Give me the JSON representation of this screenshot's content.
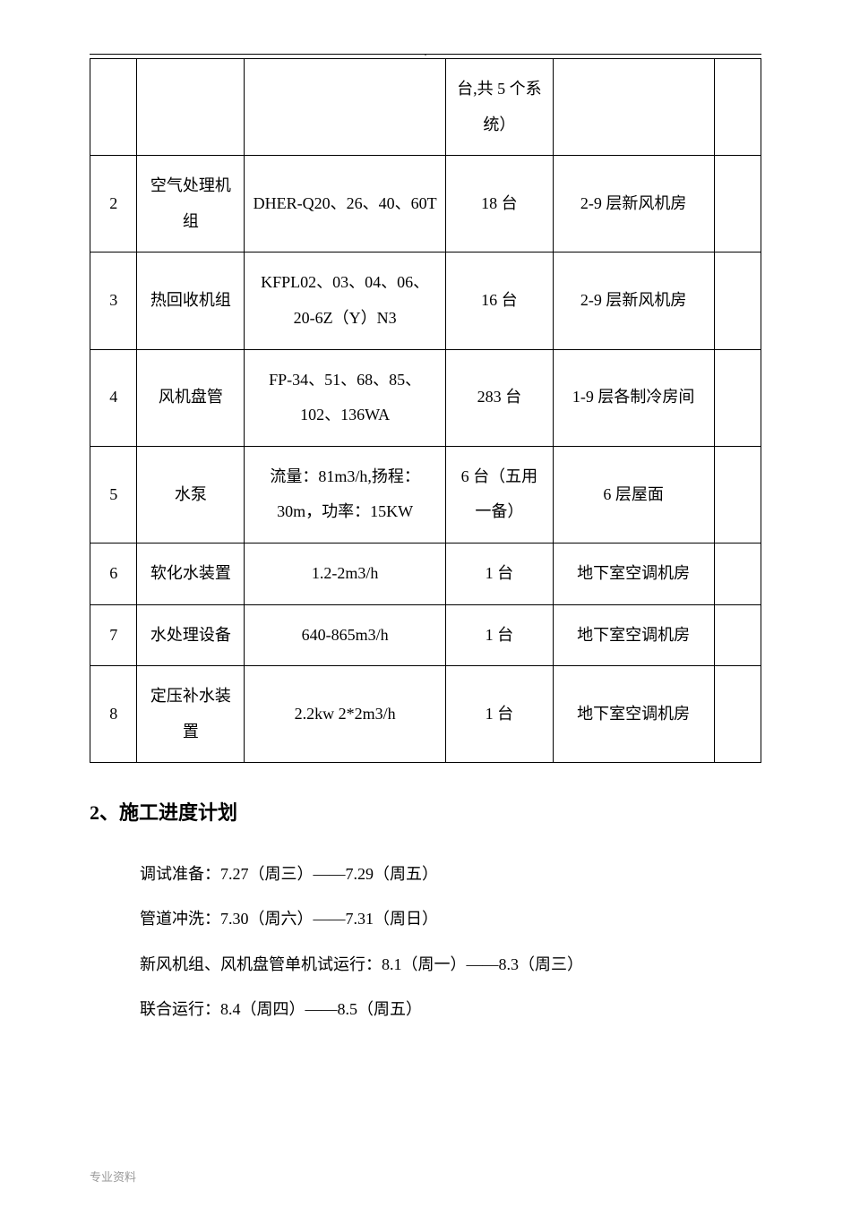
{
  "table": {
    "rows": [
      {
        "num": "",
        "name": "",
        "spec": "",
        "qty": "台,共 5 个系统）",
        "loc": "",
        "last": ""
      },
      {
        "num": "2",
        "name": "空气处理机组",
        "spec": "DHER-Q20、26、40、60T",
        "qty": "18 台",
        "loc": "2-9 层新风机房",
        "last": ""
      },
      {
        "num": "3",
        "name": "热回收机组",
        "spec": "KFPL02、03、04、06、20-6Z（Y）N3",
        "qty": "16 台",
        "loc": "2-9 层新风机房",
        "last": ""
      },
      {
        "num": "4",
        "name": "风机盘管",
        "spec": "FP-34、51、68、85、102、136WA",
        "qty": "283 台",
        "loc": "1-9 层各制冷房间",
        "last": ""
      },
      {
        "num": "5",
        "name": "水泵",
        "spec": "流量：81m3/h,扬程：30m，功率：15KW",
        "qty": "6 台（五用一备）",
        "loc": "6 层屋面",
        "last": ""
      },
      {
        "num": "6",
        "name": "软化水装置",
        "spec": "1.2-2m3/h",
        "qty": "1 台",
        "loc": "地下室空调机房",
        "last": ""
      },
      {
        "num": "7",
        "name": "水处理设备",
        "spec": "640-865m3/h",
        "qty": "1 台",
        "loc": "地下室空调机房",
        "last": ""
      },
      {
        "num": "8",
        "name": "定压补水装置",
        "spec": "2.2kw 2*2m3/h",
        "qty": "1 台",
        "loc": "地下室空调机房",
        "last": ""
      }
    ]
  },
  "section_heading": "2、施工进度计划",
  "schedule": [
    "调试准备：7.27（周三）——7.29（周五）",
    "管道冲洗：7.30（周六）——7.31（周日）",
    "新风机组、风机盘管单机试运行：8.1（周一）——8.3（周三）",
    "联合运行：8.4（周四）——8.5（周五）"
  ],
  "footer": "专业资料"
}
